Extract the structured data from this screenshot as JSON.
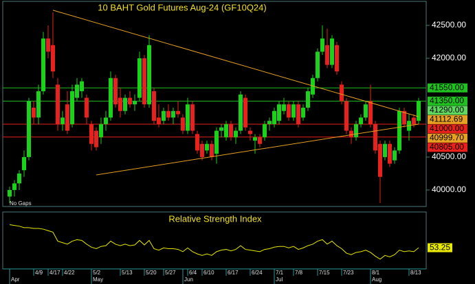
{
  "chart_data": {
    "type": "candlestick",
    "title": "10 BAHT  Gold Futures Aug-24  (GF10Q24)",
    "note": "No Gaps",
    "colors": {
      "up": "#19d219",
      "down": "#e8211c",
      "trend": "#e8a020"
    },
    "ylim": [
      39760,
      42854
    ],
    "yticks": [
      {
        "value": 40000,
        "label": "40000.00"
      },
      {
        "value": 40500,
        "label": "40500.00"
      },
      {
        "value": 42000,
        "label": "42000.00"
      },
      {
        "value": 42500,
        "label": "42500.00"
      }
    ],
    "candles": [
      [
        39900,
        40050,
        39800,
        40000
      ],
      [
        40000,
        40150,
        39900,
        40100
      ],
      [
        40100,
        40300,
        40000,
        40250
      ],
      [
        40300,
        40600,
        40200,
        40500
      ],
      [
        40500,
        41400,
        40450,
        41350
      ],
      [
        41250,
        41350,
        41000,
        41100
      ],
      [
        41100,
        41600,
        41000,
        41500
      ],
      [
        41500,
        42400,
        41450,
        42300
      ],
      [
        42300,
        42500,
        42000,
        42100
      ],
      [
        42200,
        42700,
        41700,
        41800
      ],
      [
        41600,
        41700,
        40900,
        41000
      ],
      [
        41000,
        41200,
        40900,
        41100
      ],
      [
        41300,
        41500,
        40850,
        40900
      ],
      [
        41000,
        41600,
        40950,
        41500
      ],
      [
        41400,
        41700,
        41350,
        41600
      ],
      [
        41500,
        41700,
        41400,
        41650
      ],
      [
        41400,
        41450,
        41000,
        41100
      ],
      [
        41000,
        41050,
        40600,
        40700
      ],
      [
        40900,
        40950,
        40600,
        40650
      ],
      [
        40800,
        41100,
        40700,
        41000
      ],
      [
        41000,
        41200,
        40900,
        41100
      ],
      [
        41100,
        41800,
        41050,
        41700
      ],
      [
        41700,
        41750,
        41250,
        41300
      ],
      [
        41400,
        41550,
        41100,
        41200
      ],
      [
        41200,
        41450,
        41150,
        41400
      ],
      [
        41400,
        41500,
        41250,
        41300
      ],
      [
        41300,
        41450,
        41200,
        41350
      ],
      [
        41400,
        42100,
        41350,
        42000
      ],
      [
        42000,
        42050,
        41250,
        41300
      ],
      [
        41300,
        42350,
        41250,
        42200
      ],
      [
        41500,
        41550,
        41000,
        41050
      ],
      [
        41100,
        41300,
        40950,
        41000
      ],
      [
        41050,
        41250,
        41000,
        41200
      ],
      [
        41200,
        41300,
        41050,
        41100
      ],
      [
        41100,
        41250,
        41000,
        41200
      ],
      [
        41200,
        41350,
        41100,
        41150
      ],
      [
        41100,
        41150,
        40850,
        40900
      ],
      [
        40900,
        41400,
        40850,
        41300
      ],
      [
        41300,
        41350,
        40850,
        40900
      ],
      [
        40850,
        40900,
        40550,
        40600
      ],
      [
        40700,
        40750,
        40450,
        40500
      ],
      [
        40600,
        40750,
        40550,
        40700
      ],
      [
        40700,
        40750,
        40450,
        40500
      ],
      [
        40550,
        40950,
        40400,
        40900
      ],
      [
        40900,
        41000,
        40800,
        40950
      ],
      [
        40800,
        41050,
        40750,
        41000
      ],
      [
        41000,
        41050,
        40750,
        40800
      ],
      [
        40800,
        40950,
        40700,
        40900
      ],
      [
        40900,
        41500,
        40850,
        41450
      ],
      [
        41400,
        41450,
        40900,
        40950
      ],
      [
        40900,
        40950,
        40750,
        40850
      ],
      [
        40750,
        40850,
        40550,
        40800
      ],
      [
        40800,
        40850,
        40650,
        40700
      ],
      [
        40800,
        41050,
        40750,
        41000
      ],
      [
        41000,
        41100,
        40900,
        41050
      ],
      [
        41000,
        41250,
        40950,
        41200
      ],
      [
        41050,
        41350,
        41000,
        41300
      ],
      [
        41200,
        41400,
        41150,
        41300
      ],
      [
        41300,
        41350,
        41050,
        41100
      ],
      [
        41100,
        41350,
        41050,
        41300
      ],
      [
        41300,
        41350,
        40950,
        41000
      ],
      [
        41100,
        41300,
        41050,
        41250
      ],
      [
        41250,
        41550,
        41200,
        41500
      ],
      [
        41450,
        41750,
        41400,
        41700
      ],
      [
        41700,
        42150,
        41650,
        42100
      ],
      [
        42100,
        42500,
        42050,
        42300
      ],
      [
        42200,
        42450,
        41850,
        41900
      ],
      [
        41900,
        42350,
        41850,
        42300
      ],
      [
        42200,
        42250,
        41750,
        41800
      ],
      [
        41600,
        41650,
        41300,
        41350
      ],
      [
        41350,
        41400,
        40850,
        40900
      ],
      [
        40900,
        40950,
        40700,
        40800
      ],
      [
        40800,
        41050,
        40750,
        41000
      ],
      [
        41000,
        41150,
        40950,
        41100
      ],
      [
        41100,
        41350,
        41050,
        41300
      ],
      [
        41350,
        41600,
        40950,
        41000
      ],
      [
        41000,
        41050,
        40550,
        40600
      ],
      [
        40700,
        40750,
        39800,
        40200
      ],
      [
        40500,
        40750,
        40450,
        40700
      ],
      [
        40700,
        40750,
        40350,
        40400
      ],
      [
        40450,
        40650,
        40400,
        40600
      ],
      [
        40600,
        41250,
        40550,
        41200
      ],
      [
        41200,
        41250,
        40950,
        41000
      ],
      [
        40900,
        41150,
        40750,
        41050
      ],
      [
        41100,
        41150,
        40950,
        41000
      ],
      [
        41050,
        41400,
        41000,
        41350
      ]
    ],
    "levels": [
      {
        "value": 41550,
        "label": "41550.00",
        "color": "#1fc21f",
        "line": true
      },
      {
        "value": 41350,
        "label": "41350.00",
        "color": "#1fc21f",
        "line": true
      },
      {
        "value": 41290,
        "label": "41290.00",
        "color": "#5fd85f",
        "line": false
      },
      {
        "value": 41112.69,
        "label": "41112.69",
        "color": "#e8a020",
        "line": false
      },
      {
        "value": 41000,
        "label": "41000.00",
        "color": "#e8211c",
        "line": true
      },
      {
        "value": 40999.7,
        "label": "40999.70",
        "color": "#e8a020",
        "line": false
      },
      {
        "value": 40805,
        "label": "40805.00",
        "color": "#e8211c",
        "line": true
      }
    ],
    "trendlines": [
      {
        "x": [
          9,
          85
        ],
        "y": [
          42730,
          41112.69
        ]
      },
      {
        "x": [
          18,
          85
        ],
        "y": [
          40229,
          40999.7
        ]
      }
    ],
    "xticks": [
      {
        "value": 5,
        "label": "4/9"
      },
      {
        "value": 8,
        "label": "4/17"
      },
      {
        "value": 11,
        "label": "4/22"
      },
      {
        "value": 17,
        "label": "5/2"
      },
      {
        "value": 23,
        "label": "5/13"
      },
      {
        "value": 28,
        "label": "5/20"
      },
      {
        "value": 32,
        "label": "5/27"
      },
      {
        "value": 37,
        "label": "6/4"
      },
      {
        "value": 40,
        "label": "6/10"
      },
      {
        "value": 45,
        "label": "6/17"
      },
      {
        "value": 50,
        "label": "6/24"
      },
      {
        "value": 55,
        "label": "7/1"
      },
      {
        "value": 59,
        "label": "7/8"
      },
      {
        "value": 64,
        "label": "7/15"
      },
      {
        "value": 69,
        "label": "7/23"
      },
      {
        "value": 75,
        "label": "8/1"
      },
      {
        "value": 83,
        "label": "8/13"
      }
    ],
    "month_ticks": [
      {
        "value": 0,
        "label": "Apr"
      },
      {
        "value": 17,
        "label": "May"
      },
      {
        "value": 36,
        "label": "Jun"
      },
      {
        "value": 55,
        "label": "Jul"
      },
      {
        "value": 75,
        "label": "Aug"
      }
    ],
    "rsi": {
      "title": "Relative Strength Index",
      "color": "#e8e800",
      "ylim": [
        25,
        100
      ],
      "values": [
        84,
        83,
        82,
        80,
        80,
        79,
        79,
        78,
        76,
        74,
        62,
        60,
        58,
        62,
        64,
        63,
        58,
        54,
        52,
        55,
        56,
        62,
        58,
        56,
        58,
        56,
        57,
        63,
        57,
        63,
        52,
        50,
        53,
        52,
        52,
        51,
        48,
        53,
        48,
        45,
        43,
        45,
        43,
        48,
        50,
        51,
        49,
        51,
        56,
        51,
        50,
        49,
        48,
        51,
        52,
        54,
        55,
        55,
        53,
        55,
        51,
        53,
        56,
        58,
        62,
        64,
        58,
        62,
        56,
        52,
        46,
        44,
        47,
        48,
        50,
        47,
        42,
        38,
        43,
        41,
        44,
        50,
        48,
        49,
        48,
        53.25
      ]
    }
  }
}
